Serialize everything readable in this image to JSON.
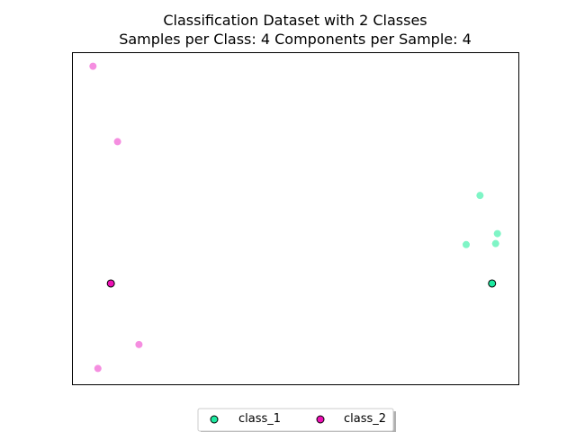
{
  "chart_data": {
    "type": "scatter",
    "title_line1": "Classification Dataset with 2 Classes",
    "title_line2": "Samples per Class: 4 Components per Sample: 4",
    "xlim": [
      0,
      100
    ],
    "ylim": [
      0,
      100
    ],
    "grid": false,
    "axis_ticks": false,
    "legend_position": "bottom-center",
    "series": [
      {
        "name": "class_1",
        "color": "#1de9a0",
        "faded_color": "#7ff5c6",
        "points": [
          {
            "x": 91.3,
            "y": 57.0
          },
          {
            "x": 94.8,
            "y": 42.5
          },
          {
            "x": 88.2,
            "y": 42.2
          },
          {
            "x": 95.2,
            "y": 45.5
          }
        ],
        "highlight": {
          "x": 94.0,
          "y": 30.5
        }
      },
      {
        "name": "class_2",
        "color": "#ee10b5",
        "faded_color": "#f58ee0",
        "points": [
          {
            "x": 4.6,
            "y": 95.9
          },
          {
            "x": 10.1,
            "y": 73.2
          },
          {
            "x": 14.9,
            "y": 12.1
          },
          {
            "x": 5.7,
            "y": 4.9
          }
        ],
        "highlight": {
          "x": 8.6,
          "y": 30.5
        }
      }
    ]
  }
}
